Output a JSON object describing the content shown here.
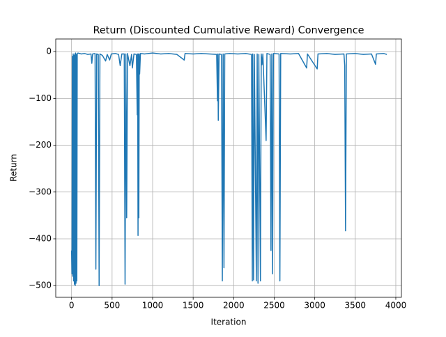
{
  "chart_data": {
    "type": "line",
    "title": "Return (Discounted Cumulative Reward) Convergence",
    "x_label": "Iteration",
    "y_label": "Return",
    "color": "#1f77b4",
    "grid": true,
    "xlim": [
      -195,
      4069
    ],
    "ylim": [
      -525,
      27
    ],
    "xticks": [
      0,
      500,
      1000,
      1500,
      2000,
      2500,
      3000,
      3500,
      4000
    ],
    "yticks": [
      {
        "value": -500,
        "label": "−500"
      },
      {
        "value": -400,
        "label": "−400"
      },
      {
        "value": -300,
        "label": "−300"
      },
      {
        "value": -200,
        "label": "−200"
      },
      {
        "value": -100,
        "label": "−100"
      },
      0
    ],
    "x": [
      0,
      5,
      10,
      15,
      20,
      25,
      30,
      35,
      40,
      45,
      50,
      55,
      60,
      65,
      70,
      80,
      120,
      160,
      200,
      240,
      250,
      260,
      290,
      300,
      310,
      330,
      340,
      350,
      380,
      420,
      440,
      470,
      490,
      540,
      580,
      600,
      620,
      650,
      660,
      670,
      680,
      690,
      720,
      740,
      750,
      770,
      800,
      810,
      815,
      820,
      825,
      830,
      835,
      840,
      850,
      900,
      1000,
      1100,
      1200,
      1300,
      1390,
      1400,
      1500,
      1600,
      1700,
      1790,
      1800,
      1805,
      1810,
      1820,
      1850,
      1860,
      1870,
      1880,
      1890,
      1950,
      2050,
      2150,
      2220,
      2230,
      2235,
      2245,
      2255,
      2280,
      2290,
      2300,
      2310,
      2330,
      2340,
      2350,
      2360,
      2400,
      2410,
      2450,
      2460,
      2470,
      2480,
      2490,
      2560,
      2570,
      2580,
      2700,
      2800,
      2900,
      2910,
      3030,
      3040,
      3150,
      3250,
      3360,
      3370,
      3380,
      3390,
      3500,
      3600,
      3700,
      3750,
      3760,
      3850,
      3890
    ],
    "values": [
      -425,
      -475,
      -10,
      -480,
      -5,
      -490,
      -8,
      -497,
      -5,
      -500,
      -3,
      -495,
      -6,
      -490,
      -5,
      -3,
      -5,
      -4,
      -6,
      -5,
      -25,
      -5,
      -4,
      -465,
      -5,
      -6,
      -500,
      -5,
      -8,
      -20,
      -6,
      -18,
      -5,
      -4,
      -6,
      -30,
      -5,
      -5,
      -497,
      -5,
      -355,
      -4,
      -30,
      -6,
      -35,
      -5,
      -6,
      -135,
      -5,
      -393,
      -5,
      -355,
      -5,
      -48,
      -4,
      -5,
      -3,
      -5,
      -4,
      -6,
      -18,
      -4,
      -5,
      -4,
      -5,
      -6,
      -105,
      -5,
      -147,
      -5,
      -6,
      -490,
      -5,
      -462,
      -5,
      -4,
      -5,
      -4,
      -6,
      -490,
      -5,
      -488,
      -6,
      -490,
      -5,
      -495,
      -6,
      -490,
      -5,
      -28,
      -5,
      -190,
      -4,
      -6,
      -425,
      -5,
      -475,
      -4,
      -5,
      -490,
      -4,
      -5,
      -4,
      -35,
      -5,
      -37,
      -5,
      -4,
      -6,
      -5,
      -30,
      -383,
      -5,
      -4,
      -6,
      -5,
      -27,
      -5,
      -4,
      -6
    ]
  }
}
